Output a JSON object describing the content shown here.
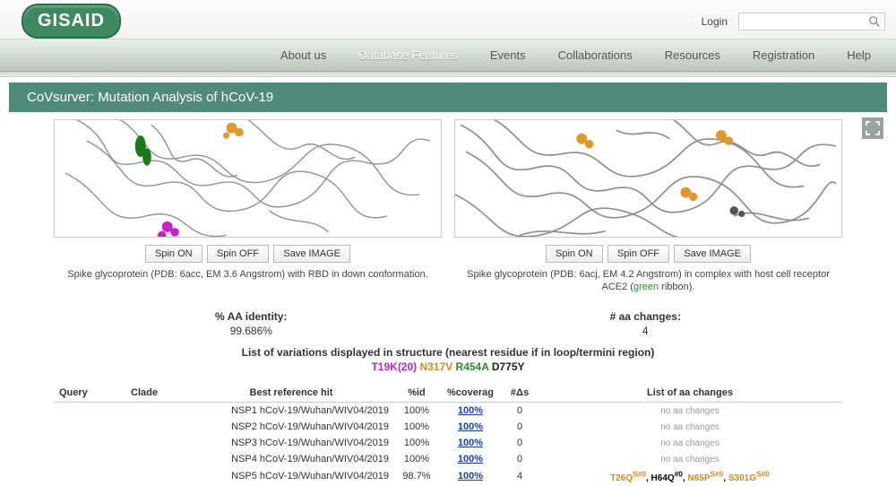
{
  "brand": "GISAID",
  "top": {
    "login": "Login",
    "search_placeholder": ""
  },
  "nav": {
    "items": [
      "About us",
      "Database Features",
      "Events",
      "Collaborations",
      "Resources",
      "Registration",
      "Help"
    ],
    "active_index": 1
  },
  "page_title": "CoVsurver: Mutation Analysis of hCoV-19",
  "panel_buttons": {
    "spin_on": "Spin ON",
    "spin_off": "Spin OFF",
    "save_img": "Save IMAGE"
  },
  "panel_left_caption": "Spike glycoprotein (PDB: 6acc, EM 3.6 Angstrom) with RBD in down conformation.",
  "panel_right_caption_a": "Spike glycoprotein (PDB: 6acj, EM 4.2 Angstrom) in complex with host cell receptor ACE2 (",
  "panel_right_caption_green": "green",
  "panel_right_caption_b": " ribbon).",
  "stats": {
    "left_label": "% AA identity:",
    "left_value": "99.686%",
    "right_label": "# aa changes:",
    "right_value": "4"
  },
  "variations": {
    "title": "List of variations displayed in structure (nearest residue if in loop/termini region)",
    "items": [
      {
        "text": "T19K(20)",
        "color": "c0"
      },
      {
        "text": "N317V",
        "color": "c1"
      },
      {
        "text": "R454A",
        "color": "c2"
      },
      {
        "text": "D775Y",
        "color": "c3"
      }
    ]
  },
  "table": {
    "headers": {
      "query": "Query",
      "clade": "Clade",
      "best": "Best reference hit",
      "pid": "%id",
      "cov": "%coverag",
      "das": "#Δs",
      "changes": "List of aa changes"
    },
    "rows": [
      {
        "query": "",
        "clade": "",
        "best": "NSP1 hCoV-19/Wuhan/WIV04/2019",
        "pid": "100%",
        "cov": "100%",
        "das": "0",
        "changes_html": "noaa"
      },
      {
        "query": "",
        "clade": "",
        "best": "NSP2 hCoV-19/Wuhan/WIV04/2019",
        "pid": "100%",
        "cov": "100%",
        "das": "0",
        "changes_html": "noaa"
      },
      {
        "query": "",
        "clade": "",
        "best": "NSP3 hCoV-19/Wuhan/WIV04/2019",
        "pid": "100%",
        "cov": "100%",
        "das": "0",
        "changes_html": "noaa"
      },
      {
        "query": "",
        "clade": "",
        "best": "NSP4 hCoV-19/Wuhan/WIV04/2019",
        "pid": "100%",
        "cov": "100%",
        "das": "0",
        "changes_html": "noaa"
      },
      {
        "query": "",
        "clade": "",
        "best": "NSP5 hCoV-19/Wuhan/WIV04/2019",
        "pid": "98.7%",
        "cov": "100%",
        "das": "4",
        "changes_html": "aa5"
      }
    ],
    "noaa_text": "no aa changes",
    "aa5_parts": [
      {
        "t": "T26Q",
        "c": "orange",
        "sup": "S#0"
      },
      {
        "t": ", ",
        "c": "black"
      },
      {
        "t": "H64Q",
        "c": "black",
        "sup": "#0"
      },
      {
        "t": ", ",
        "c": "black"
      },
      {
        "t": "N65P",
        "c": "orange",
        "sup": "S#0"
      },
      {
        "t": ", ",
        "c": "black"
      },
      {
        "t": "S301G",
        "c": "orange",
        "sup": "S#0"
      }
    ]
  }
}
